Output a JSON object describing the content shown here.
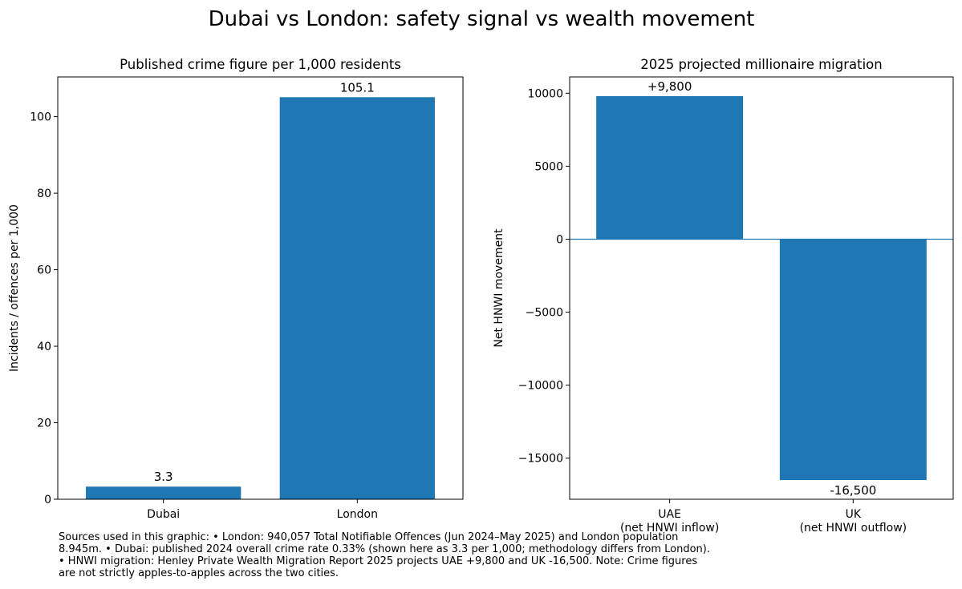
{
  "title": "Dubai vs London: safety signal vs wealth movement",
  "chart_data": [
    {
      "type": "bar",
      "title": "Published crime figure per 1,000 residents",
      "xlabel": "",
      "ylabel": "Incidents / offences per 1,000",
      "categories": [
        "Dubai",
        "London"
      ],
      "values": [
        3.3,
        105.1
      ],
      "value_labels": [
        "3.3",
        "105.1"
      ],
      "ylim": [
        0,
        110.4
      ],
      "yticks": [
        0,
        20,
        40,
        60,
        80,
        100
      ],
      "ytick_labels": [
        "0",
        "20",
        "40",
        "60",
        "80",
        "100"
      ],
      "color": "#1f77b4",
      "grid": false
    },
    {
      "type": "bar",
      "title": "2025 projected millionaire migration",
      "xlabel": "",
      "ylabel": "Net HNWI movement",
      "categories": [
        "UAE\n(net HNWI inflow)",
        "UK\n(net HNWI outflow)"
      ],
      "values": [
        9800,
        -16500
      ],
      "value_labels": [
        "+9,800",
        "-16,500"
      ],
      "ylim": [
        -17815,
        11115
      ],
      "yticks": [
        10000,
        5000,
        0,
        -5000,
        -10000,
        -15000
      ],
      "ytick_labels": [
        "10000",
        "5000",
        "0",
        "−5000",
        "−10000",
        "−15000"
      ],
      "color": "#1f77b4",
      "zero_line": true,
      "grid": false
    }
  ],
  "sources": {
    "line1": "Sources used in this graphic: • London: 940,057 Total Notifiable Offences (Jun 2024–May 2025) and London population",
    "line2": "8.945m. • Dubai: published 2024 overall crime rate 0.33% (shown here as 3.3 per 1,000; methodology differs from London).",
    "line3": "• HNWI migration: Henley Private Wealth Migration Report 2025 projects UAE +9,800 and UK -16,500. Note: Crime figures",
    "line4": "are not strictly apples-to-apples across the two cities."
  }
}
